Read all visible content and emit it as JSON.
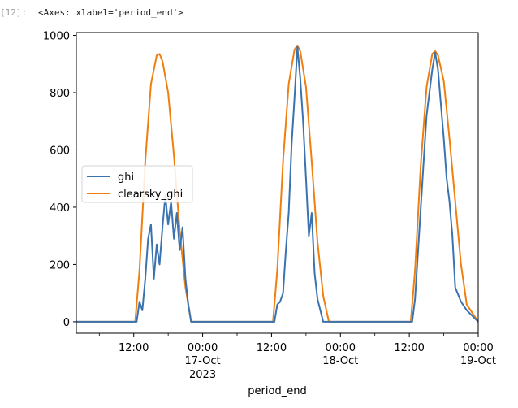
{
  "cell": {
    "prompt": "[12]:",
    "output_repr": "<Axes: xlabel='period_end'>"
  },
  "colors": {
    "ghi": "#3a73b0",
    "clearsky_ghi": "#f07f0f",
    "axis": "#000000",
    "prompt": "#9e9e9e"
  },
  "chart_data": {
    "type": "line",
    "xlabel": "period_end",
    "ylabel": "",
    "ylim": [
      -40,
      1010
    ],
    "xlim": [
      "2023-10-16 02:00",
      "2023-10-19 00:00"
    ],
    "grid": false,
    "legend_position": "center-left",
    "y_ticks": [
      0,
      200,
      400,
      600,
      800,
      1000
    ],
    "x_ticks": [
      {
        "x": "2023-10-16 12:00",
        "label": "12:00"
      },
      {
        "x": "2023-10-17 00:00",
        "label": "00:00",
        "sub": "17-Oct",
        "sub2": "2023"
      },
      {
        "x": "2023-10-17 12:00",
        "label": "12:00"
      },
      {
        "x": "2023-10-18 00:00",
        "label": "00:00",
        "sub": "18-Oct"
      },
      {
        "x": "2023-10-18 12:00",
        "label": "12:00"
      },
      {
        "x": "2023-10-19 00:00",
        "label": "00:00",
        "sub": "19-Oct"
      }
    ],
    "series": [
      {
        "name": "clearsky_ghi",
        "points": [
          [
            "2023-10-16 02:00",
            0
          ],
          [
            "2023-10-16 12:15",
            0
          ],
          [
            "2023-10-16 13:00",
            180
          ],
          [
            "2023-10-16 14:00",
            560
          ],
          [
            "2023-10-16 15:00",
            830
          ],
          [
            "2023-10-16 16:00",
            930
          ],
          [
            "2023-10-16 16:30",
            935
          ],
          [
            "2023-10-16 17:00",
            910
          ],
          [
            "2023-10-16 18:00",
            800
          ],
          [
            "2023-10-16 19:00",
            580
          ],
          [
            "2023-10-16 20:00",
            320
          ],
          [
            "2023-10-16 21:00",
            120
          ],
          [
            "2023-10-16 22:00",
            0
          ],
          [
            "2023-10-17 12:15",
            0
          ],
          [
            "2023-10-17 13:00",
            180
          ],
          [
            "2023-10-17 14:00",
            560
          ],
          [
            "2023-10-17 15:00",
            830
          ],
          [
            "2023-10-17 16:00",
            950
          ],
          [
            "2023-10-17 16:30",
            965
          ],
          [
            "2023-10-17 17:00",
            945
          ],
          [
            "2023-10-17 18:00",
            820
          ],
          [
            "2023-10-17 19:00",
            560
          ],
          [
            "2023-10-17 20:00",
            280
          ],
          [
            "2023-10-17 21:00",
            90
          ],
          [
            "2023-10-17 22:00",
            0
          ],
          [
            "2023-10-18 12:15",
            0
          ],
          [
            "2023-10-18 13:00",
            180
          ],
          [
            "2023-10-18 14:00",
            550
          ],
          [
            "2023-10-18 15:00",
            820
          ],
          [
            "2023-10-18 16:00",
            935
          ],
          [
            "2023-10-18 16:30",
            945
          ],
          [
            "2023-10-18 17:00",
            930
          ],
          [
            "2023-10-18 18:00",
            840
          ],
          [
            "2023-10-18 19:00",
            640
          ],
          [
            "2023-10-18 20:00",
            420
          ],
          [
            "2023-10-18 21:00",
            200
          ],
          [
            "2023-10-18 22:00",
            60
          ],
          [
            "2023-10-19 00:00",
            0
          ]
        ]
      },
      {
        "name": "ghi",
        "points": [
          [
            "2023-10-16 02:00",
            0
          ],
          [
            "2023-10-16 12:30",
            0
          ],
          [
            "2023-10-16 13:00",
            70
          ],
          [
            "2023-10-16 13:30",
            40
          ],
          [
            "2023-10-16 14:00",
            150
          ],
          [
            "2023-10-16 14:30",
            290
          ],
          [
            "2023-10-16 15:00",
            340
          ],
          [
            "2023-10-16 15:30",
            150
          ],
          [
            "2023-10-16 16:00",
            270
          ],
          [
            "2023-10-16 16:30",
            200
          ],
          [
            "2023-10-16 17:00",
            330
          ],
          [
            "2023-10-16 17:30",
            440
          ],
          [
            "2023-10-16 18:00",
            340
          ],
          [
            "2023-10-16 18:30",
            420
          ],
          [
            "2023-10-16 19:00",
            290
          ],
          [
            "2023-10-16 19:30",
            380
          ],
          [
            "2023-10-16 20:00",
            250
          ],
          [
            "2023-10-16 20:30",
            330
          ],
          [
            "2023-10-16 21:00",
            150
          ],
          [
            "2023-10-16 21:30",
            60
          ],
          [
            "2023-10-16 22:00",
            0
          ],
          [
            "2023-10-17 12:30",
            0
          ],
          [
            "2023-10-17 13:00",
            60
          ],
          [
            "2023-10-17 13:30",
            70
          ],
          [
            "2023-10-17 14:00",
            100
          ],
          [
            "2023-10-17 14:30",
            250
          ],
          [
            "2023-10-17 15:00",
            380
          ],
          [
            "2023-10-17 15:30",
            620
          ],
          [
            "2023-10-17 16:00",
            780
          ],
          [
            "2023-10-17 16:30",
            960
          ],
          [
            "2023-10-17 17:00",
            850
          ],
          [
            "2023-10-17 17:30",
            700
          ],
          [
            "2023-10-17 18:00",
            500
          ],
          [
            "2023-10-17 18:30",
            300
          ],
          [
            "2023-10-17 19:00",
            380
          ],
          [
            "2023-10-17 19:30",
            170
          ],
          [
            "2023-10-17 20:00",
            80
          ],
          [
            "2023-10-17 21:00",
            0
          ],
          [
            "2023-10-18 12:30",
            0
          ],
          [
            "2023-10-18 13:00",
            80
          ],
          [
            "2023-10-18 14:00",
            400
          ],
          [
            "2023-10-18 14:30",
            560
          ],
          [
            "2023-10-18 15:00",
            720
          ],
          [
            "2023-10-18 15:30",
            800
          ],
          [
            "2023-10-18 16:00",
            880
          ],
          [
            "2023-10-18 16:30",
            940
          ],
          [
            "2023-10-18 17:00",
            880
          ],
          [
            "2023-10-18 17:30",
            760
          ],
          [
            "2023-10-18 18:00",
            640
          ],
          [
            "2023-10-18 18:30",
            500
          ],
          [
            "2023-10-18 19:00",
            420
          ],
          [
            "2023-10-18 19:30",
            300
          ],
          [
            "2023-10-18 20:00",
            120
          ],
          [
            "2023-10-18 21:00",
            70
          ],
          [
            "2023-10-18 22:00",
            40
          ],
          [
            "2023-10-19 00:00",
            0
          ]
        ]
      }
    ]
  }
}
